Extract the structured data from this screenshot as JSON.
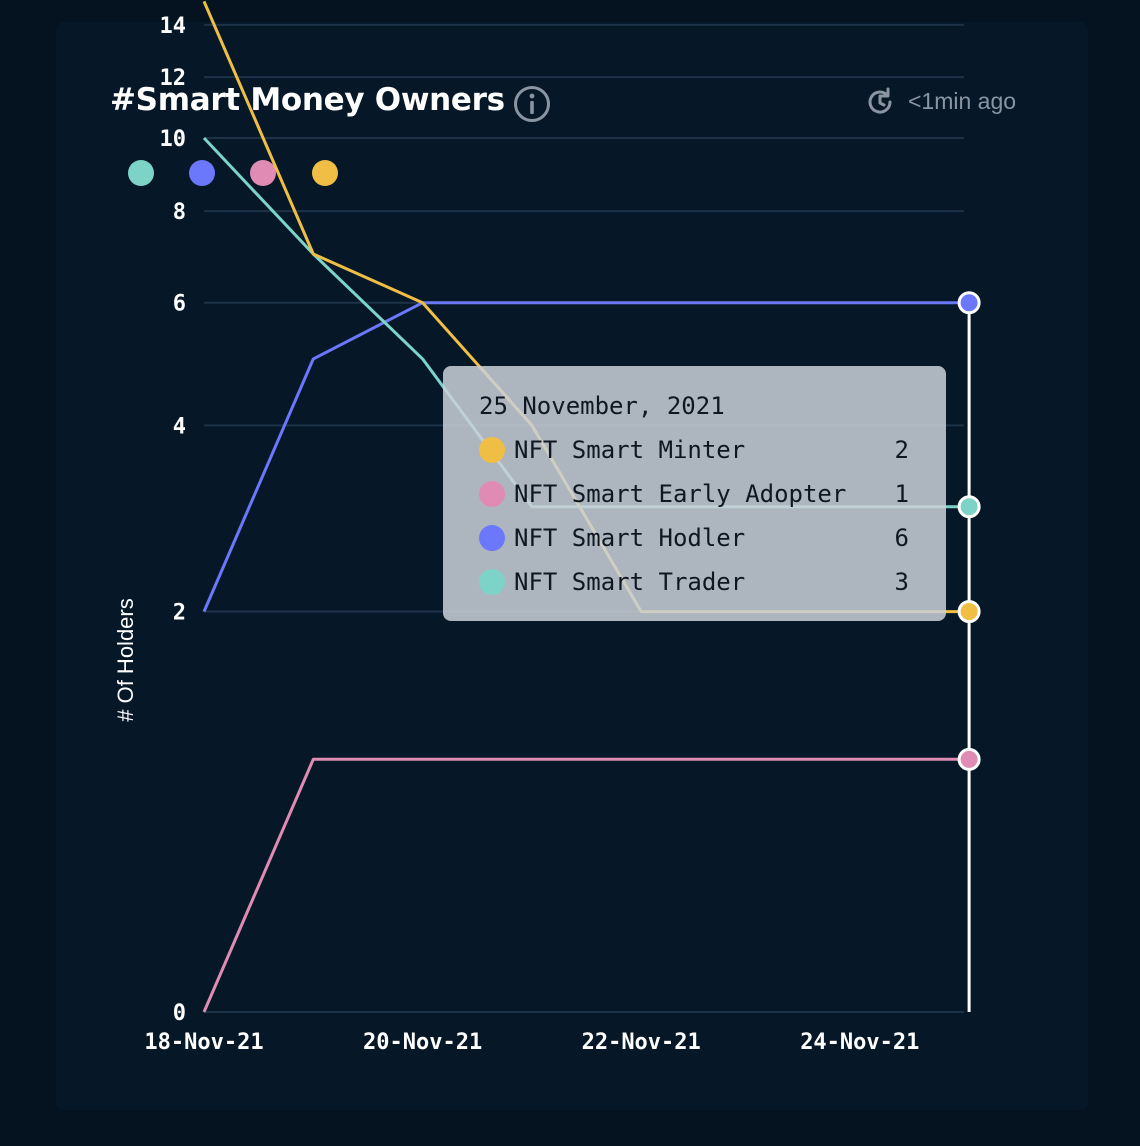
{
  "header": {
    "title": "#Smart Money Owners",
    "updated": "<1min ago"
  },
  "colors": {
    "trader": "#7dd3c8",
    "hodler": "#6b78fb",
    "early_adopter": "#e08bb4",
    "minter": "#f0be45",
    "grid": "#1e3247",
    "cursor": "#ffffff"
  },
  "chart_data": {
    "type": "line",
    "title": "#Smart Money Owners",
    "ylabel": "# Of Holders",
    "xlabel": "",
    "x": [
      "18-Nov-21",
      "19-Nov-21",
      "20-Nov-21",
      "21-Nov-21",
      "22-Nov-21",
      "23-Nov-21",
      "24-Nov-21",
      "25-Nov-21"
    ],
    "x_tick_labels": [
      "18-Nov-21",
      "20-Nov-21",
      "22-Nov-21",
      "24-Nov-21"
    ],
    "y_tick_labels": [
      "0",
      "2",
      "4",
      "6",
      "8",
      "10",
      "12",
      "14"
    ],
    "y_scale": "log (log1p)",
    "ylim": [
      0,
      15
    ],
    "grid": true,
    "series": [
      {
        "name": "NFT Smart Trader",
        "color_key": "trader",
        "values": [
          10,
          7,
          5,
          3,
          3,
          3,
          3,
          3
        ]
      },
      {
        "name": "NFT Smart Hodler",
        "color_key": "hodler",
        "values": [
          2,
          5,
          6,
          6,
          6,
          6,
          6,
          6
        ]
      },
      {
        "name": "NFT Smart Early Adopter",
        "color_key": "early_adopter",
        "values": [
          0,
          1,
          1,
          1,
          1,
          1,
          1,
          1
        ]
      },
      {
        "name": "NFT Smart Minter",
        "color_key": "minter",
        "values": [
          15,
          7,
          6,
          4,
          2,
          2,
          2,
          2
        ]
      }
    ],
    "tooltip": {
      "date": "25 November, 2021",
      "rows": [
        {
          "name": "NFT Smart Minter",
          "value": "2",
          "color_key": "minter"
        },
        {
          "name": "NFT Smart Early Adopter",
          "value": "1",
          "color_key": "early_adopter"
        },
        {
          "name": "NFT Smart Hodler",
          "value": "6",
          "color_key": "hodler"
        },
        {
          "name": "NFT Smart Trader",
          "value": "3",
          "color_key": "trader"
        }
      ]
    }
  }
}
